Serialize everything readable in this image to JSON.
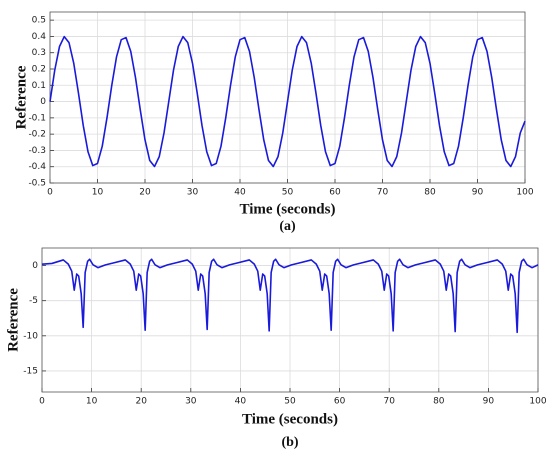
{
  "chart_data": [
    {
      "type": "line",
      "xlabel": "Time (seconds)",
      "ylabel": "Reference",
      "caption": "(a)",
      "color": "#1a1adb",
      "grid": true,
      "xlim": [
        0,
        100
      ],
      "xticks": [
        0,
        10,
        20,
        30,
        40,
        50,
        60,
        70,
        80,
        90,
        100
      ],
      "ylim": [
        -0.5,
        0.55
      ],
      "yticks": [
        -0.5,
        -0.4,
        -0.3,
        -0.2,
        -0.1,
        0,
        0.1,
        0.2,
        0.3,
        0.4,
        0.5
      ],
      "x": [
        0,
        1,
        2,
        3,
        4,
        5,
        6,
        7,
        8,
        9,
        10,
        11,
        12,
        13,
        14,
        15,
        16,
        17,
        18,
        19,
        20,
        21,
        22,
        23,
        24,
        25,
        26,
        27,
        28,
        29,
        30,
        31,
        32,
        33,
        34,
        35,
        36,
        37,
        38,
        39,
        40,
        41,
        42,
        43,
        44,
        45,
        46,
        47,
        48,
        49,
        50,
        51,
        52,
        53,
        54,
        55,
        56,
        57,
        58,
        59,
        60,
        61,
        62,
        63,
        64,
        65,
        66,
        67,
        68,
        69,
        70,
        71,
        72,
        73,
        74,
        75,
        76,
        77,
        78,
        79,
        80,
        81,
        82,
        83,
        84,
        85,
        86,
        87,
        88,
        89,
        90,
        91,
        92,
        93,
        94,
        95,
        96,
        97,
        98,
        99,
        100
      ],
      "values": [
        0,
        0.193,
        0.338,
        0.399,
        0.362,
        0.235,
        0.05,
        -0.147,
        -0.308,
        -0.393,
        -0.38,
        -0.274,
        -0.099,
        0.099,
        0.274,
        0.38,
        0.393,
        0.308,
        0.147,
        -0.05,
        -0.235,
        -0.362,
        -0.399,
        -0.338,
        -0.193,
        0,
        0.193,
        0.338,
        0.399,
        0.362,
        0.235,
        0.05,
        -0.147,
        -0.308,
        -0.393,
        -0.38,
        -0.274,
        -0.099,
        0.099,
        0.274,
        0.38,
        0.393,
        0.308,
        0.147,
        -0.05,
        -0.235,
        -0.362,
        -0.399,
        -0.338,
        -0.193,
        0,
        0.193,
        0.338,
        0.399,
        0.362,
        0.235,
        0.05,
        -0.147,
        -0.308,
        -0.393,
        -0.38,
        -0.274,
        -0.099,
        0.099,
        0.274,
        0.38,
        0.393,
        0.308,
        0.147,
        -0.05,
        -0.235,
        -0.362,
        -0.399,
        -0.338,
        -0.193,
        0,
        0.193,
        0.338,
        0.399,
        0.362,
        0.235,
        0.05,
        -0.147,
        -0.308,
        -0.393,
        -0.38,
        -0.274,
        -0.099,
        0.099,
        0.274,
        0.38,
        0.393,
        0.308,
        0.147,
        -0.05,
        -0.235,
        -0.362,
        -0.399,
        -0.338,
        -0.193,
        -0.12
      ]
    },
    {
      "type": "line",
      "xlabel": "Time (seconds)",
      "ylabel": "Reference",
      "caption": "(b)",
      "color": "#1a1adb",
      "grid": true,
      "xlim": [
        0,
        100
      ],
      "xticks": [
        0,
        10,
        20,
        30,
        40,
        50,
        60,
        70,
        80,
        90,
        100
      ],
      "ylim": [
        -18,
        2.5
      ],
      "yticks": [
        -15,
        -10,
        -5,
        0
      ],
      "x": [
        0,
        2,
        4.3,
        5.3,
        6,
        6.5,
        7,
        7.4,
        7.9,
        8.3,
        8.7,
        9.2,
        9.6,
        10.3,
        11.3,
        12.8,
        14.55,
        16.8,
        17.8,
        18.5,
        19,
        19.5,
        19.9,
        20.4,
        20.8,
        21.2,
        21.7,
        22.1,
        22.8,
        23.8,
        25.3,
        27.05,
        29.3,
        30.3,
        31,
        31.5,
        32,
        32.4,
        32.9,
        33.3,
        33.7,
        34.2,
        34.6,
        35.3,
        36.3,
        37.8,
        39.55,
        41.8,
        42.8,
        43.5,
        44,
        44.5,
        44.9,
        45.4,
        45.8,
        46.2,
        46.7,
        47.1,
        47.8,
        48.8,
        50.3,
        52.05,
        54.3,
        55.3,
        56,
        56.5,
        57,
        57.4,
        57.9,
        58.3,
        58.7,
        59.2,
        59.6,
        60.3,
        61.3,
        62.8,
        64.55,
        66.8,
        67.8,
        68.5,
        69,
        69.5,
        69.9,
        70.4,
        70.8,
        71.2,
        71.7,
        72.1,
        72.8,
        73.8,
        75.3,
        77.05,
        79.3,
        80.3,
        81,
        81.5,
        82,
        82.4,
        82.9,
        83.3,
        83.7,
        84.2,
        84.6,
        85.3,
        86.3,
        87.8,
        89.55,
        91.8,
        92.8,
        93.5,
        94,
        94.5,
        94.9,
        95.4,
        95.8,
        96.2,
        96.7,
        97.1,
        97.8,
        98.8,
        100
      ],
      "values": [
        0.2,
        0.3,
        0.8,
        0.2,
        -0.8,
        -3.5,
        -1.2,
        -1.5,
        -4,
        -8.8,
        -1,
        0.6,
        0.9,
        0.1,
        -0.3,
        0.1,
        0.4,
        0.8,
        0.2,
        -0.8,
        -3.5,
        -1.2,
        -1.5,
        -4,
        -9.2,
        -1,
        0.6,
        0.9,
        0.1,
        -0.3,
        0.1,
        0.4,
        0.8,
        0.2,
        -0.8,
        -3.5,
        -1.2,
        -1.5,
        -4,
        -9.1,
        -1,
        0.6,
        0.9,
        0.1,
        -0.3,
        0.1,
        0.4,
        0.8,
        0.2,
        -0.8,
        -3.5,
        -1.2,
        -1.5,
        -4,
        -9.3,
        -1,
        0.6,
        0.9,
        0.1,
        -0.3,
        0.1,
        0.4,
        0.8,
        0.2,
        -0.8,
        -3.5,
        -1.2,
        -1.5,
        -4,
        -9.2,
        -1,
        0.6,
        0.9,
        0.1,
        -0.3,
        0.1,
        0.4,
        0.8,
        0.2,
        -0.8,
        -3.5,
        -1.2,
        -1.5,
        -4,
        -9.3,
        -1,
        0.6,
        0.9,
        0.1,
        -0.3,
        0.1,
        0.4,
        0.8,
        0.2,
        -0.8,
        -3.5,
        -1.2,
        -1.5,
        -4,
        -9.4,
        -1,
        0.6,
        0.9,
        0.1,
        -0.3,
        0.1,
        0.4,
        0.8,
        0.2,
        -0.8,
        -3.5,
        -1.2,
        -1.5,
        -4,
        -9.5,
        -1,
        0.6,
        0.9,
        0.1,
        -0.3,
        0.1
      ]
    }
  ]
}
